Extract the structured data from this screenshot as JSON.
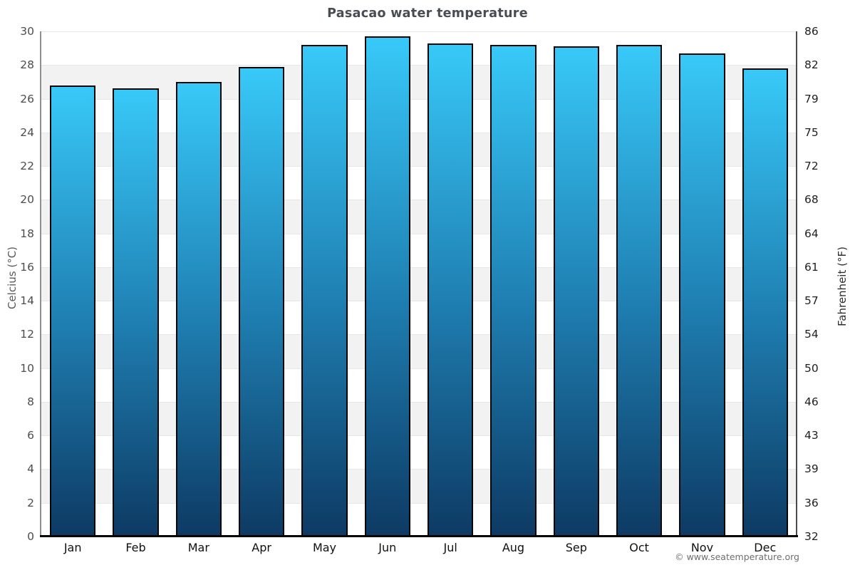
{
  "page": {
    "copyright": "© www.seatemperature.org"
  },
  "chart_data": {
    "type": "bar",
    "title": "Pasacao water temperature",
    "categories": [
      "Jan",
      "Feb",
      "Mar",
      "Apr",
      "May",
      "Jun",
      "Jul",
      "Aug",
      "Sep",
      "Oct",
      "Nov",
      "Dec"
    ],
    "values": [
      26.8,
      26.6,
      27.0,
      27.9,
      29.2,
      29.7,
      29.3,
      29.2,
      29.1,
      29.2,
      28.7,
      27.8
    ],
    "unit": "°C",
    "ylabel_left": "Celcius (°C)",
    "ylabel_right": "Fahrenheit (°F)",
    "ylim": [
      0,
      30
    ],
    "celsius_ticks": [
      0,
      2,
      4,
      6,
      8,
      10,
      12,
      14,
      16,
      18,
      20,
      22,
      24,
      26,
      28,
      30
    ],
    "fahrenheit_tick_labels": [
      "32",
      "36",
      "39",
      "43",
      "46",
      "50",
      "54",
      "57",
      "61",
      "64",
      "68",
      "72",
      "75",
      "79",
      "82",
      "86"
    ],
    "band_step": 2,
    "legend": "none",
    "grid": "alternating horizontal bands every 2°C",
    "colors": {
      "bar_gradient_top": "#38c9f8",
      "bar_gradient_mid": "#1f7fb2",
      "bar_gradient_bottom": "#0d3a63",
      "bar_border": "#060606",
      "band_light": "#ffffff",
      "band_dark": "#f2f2f2",
      "bottom_axis": "#000000",
      "title_color": "#474d52"
    }
  }
}
